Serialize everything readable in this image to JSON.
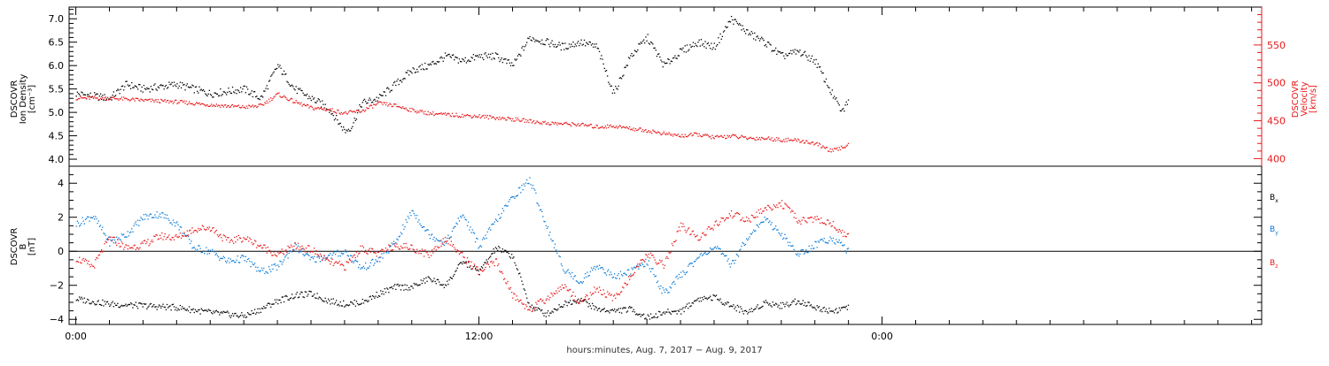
{
  "chart_data": [
    {
      "type": "scatter",
      "panel": "density-velocity",
      "ylabel_left": [
        "DSCOVR",
        "Ion Density",
        "[cm⁻³]"
      ],
      "ylabel_right": [
        "DSCOVR",
        "Velocity",
        "[km/s]"
      ],
      "ylim_left": [
        3.85,
        7.25
      ],
      "ylim_right": [
        390,
        600
      ],
      "yticks_left": [
        4.0,
        4.5,
        5.0,
        5.5,
        6.0,
        6.5,
        7.0
      ],
      "yticks_left_labels": [
        "4.0",
        "4.5",
        "5.0",
        "5.5",
        "6.0",
        "6.5",
        "7.0"
      ],
      "yticks_right": [
        400,
        450,
        500,
        550
      ],
      "yticks_right_labels": [
        "400",
        "450",
        "500",
        "550"
      ],
      "series": [
        {
          "axis": "left",
          "color": "#000000",
          "x": [
            0,
            1,
            1.5,
            2,
            3,
            4,
            5,
            5.5,
            6,
            6.5,
            7,
            7.5,
            8,
            8.2,
            8.5,
            9,
            9.5,
            10,
            10.5,
            11,
            11.5,
            12,
            12.5,
            13,
            13.5,
            14,
            14.5,
            15,
            15.5,
            16,
            16.5,
            17,
            17.5,
            18,
            18.5,
            19,
            19.5,
            20,
            20.5,
            21,
            21.5,
            22,
            22.5,
            22.8,
            23
          ],
          "y": [
            5.4,
            5.3,
            5.6,
            5.5,
            5.6,
            5.4,
            5.5,
            5.3,
            6.0,
            5.5,
            5.3,
            5.1,
            4.6,
            4.7,
            5.2,
            5.3,
            5.6,
            5.9,
            6.0,
            6.2,
            6.1,
            6.2,
            6.2,
            6.0,
            6.6,
            6.5,
            6.4,
            6.5,
            6.4,
            5.4,
            6.2,
            6.6,
            6.0,
            6.3,
            6.5,
            6.4,
            7.0,
            6.7,
            6.5,
            6.2,
            6.3,
            6.1,
            5.4,
            5.0,
            5.3
          ]
        },
        {
          "axis": "right",
          "color": "#e8191b",
          "x": [
            0,
            1,
            2,
            3,
            4,
            5,
            5.5,
            6,
            6.5,
            7,
            7.5,
            8,
            8.5,
            9,
            9.5,
            10,
            10.5,
            11,
            12,
            13,
            14,
            15,
            15.5,
            16,
            16.5,
            17,
            17.5,
            18,
            18.5,
            19,
            19.5,
            20,
            20.5,
            21,
            21.5,
            22,
            22.5,
            23
          ],
          "y": [
            480,
            480,
            477,
            475,
            471,
            468,
            470,
            485,
            475,
            467,
            465,
            460,
            463,
            473,
            470,
            464,
            460,
            458,
            456,
            452,
            447,
            445,
            442,
            443,
            440,
            437,
            433,
            430,
            432,
            428,
            430,
            427,
            427,
            425,
            424,
            420,
            410,
            418
          ]
        }
      ]
    },
    {
      "type": "scatter",
      "panel": "magnetic-field",
      "ylabel": [
        "DSCOVR",
        "B",
        "[nT]"
      ],
      "ylim": [
        -4.3,
        5.0
      ],
      "yticks": [
        -4,
        -2,
        0,
        2,
        4
      ],
      "yticks_labels": [
        "−4",
        "−2",
        "0",
        "2",
        "4"
      ],
      "series": [
        {
          "name": "Bx",
          "label": "B",
          "sub": "x",
          "color": "#000000",
          "x": [
            0,
            1,
            2,
            3,
            4,
            5,
            5.5,
            6,
            6.5,
            7,
            7.5,
            8,
            8.5,
            9,
            9.5,
            10,
            10.5,
            11,
            11.5,
            12,
            12.5,
            13,
            13.5,
            14,
            14.5,
            15,
            15.5,
            16,
            16.5,
            17,
            17.5,
            18,
            18.5,
            19,
            19.5,
            20,
            20.5,
            21,
            21.5,
            22,
            22.5,
            23
          ],
          "y": [
            -2.8,
            -3.1,
            -3.2,
            -3.3,
            -3.6,
            -3.8,
            -3.4,
            -2.9,
            -2.6,
            -2.5,
            -2.9,
            -3.1,
            -3.0,
            -2.5,
            -2.1,
            -2.1,
            -1.6,
            -2.0,
            -0.6,
            -1.2,
            0.2,
            -0.3,
            -3.2,
            -3.7,
            -3.1,
            -2.8,
            -3.4,
            -3.5,
            -3.4,
            -3.9,
            -3.6,
            -3.5,
            -2.8,
            -2.7,
            -3.2,
            -3.6,
            -3.0,
            -3.2,
            -2.9,
            -3.3,
            -3.5,
            -3.3
          ]
        },
        {
          "name": "By",
          "label": "B",
          "sub": "y",
          "color": "#0a7bd8",
          "x": [
            0,
            0.5,
            1,
            1.5,
            2,
            2.5,
            3,
            3.5,
            4,
            4.5,
            5,
            5.5,
            6,
            6.5,
            7,
            7.5,
            8,
            8.5,
            9,
            9.5,
            10,
            10.5,
            11,
            11.5,
            12,
            12.5,
            13,
            13.5,
            14,
            14.5,
            15,
            15.5,
            16,
            16.5,
            17,
            17.5,
            18,
            18.5,
            19,
            19.5,
            20,
            20.5,
            21,
            21.5,
            22,
            22.5,
            23
          ],
          "y": [
            1.6,
            2.1,
            0.5,
            1.0,
            2.0,
            2.2,
            1.6,
            0.2,
            0.0,
            -0.6,
            -0.4,
            -1.2,
            -0.9,
            0.3,
            -0.5,
            -0.3,
            0.0,
            -1.0,
            -0.5,
            0.5,
            2.4,
            1.0,
            0.5,
            2.2,
            0.3,
            1.8,
            3.2,
            4.2,
            1.5,
            -1.0,
            -1.8,
            -0.8,
            -1.5,
            -1.2,
            -0.6,
            -2.5,
            -1.4,
            -0.4,
            0.3,
            -0.8,
            0.9,
            1.9,
            1.0,
            -0.2,
            0.4,
            0.8,
            0.0
          ]
        },
        {
          "name": "Bz",
          "label": "B",
          "sub": "z",
          "color": "#e8191b",
          "x": [
            0,
            0.5,
            1,
            1.5,
            2,
            2.5,
            3,
            3.5,
            4,
            4.5,
            5,
            5.5,
            6,
            6.5,
            7,
            7.5,
            8,
            8.5,
            9,
            9.5,
            10,
            10.5,
            11,
            11.5,
            12,
            12.5,
            13,
            13.5,
            14,
            14.5,
            15,
            15.5,
            16,
            16.5,
            17,
            17.5,
            18,
            18.5,
            19,
            19.5,
            20,
            20.5,
            21,
            21.5,
            22,
            22.5,
            23
          ],
          "y": [
            -0.4,
            -0.9,
            0.8,
            0.2,
            0.4,
            0.9,
            0.8,
            1.3,
            1.4,
            0.6,
            0.8,
            0.3,
            -0.2,
            0.3,
            0.1,
            -0.6,
            -0.9,
            0.2,
            -0.2,
            0.4,
            0.2,
            -0.2,
            0.8,
            -0.3,
            -1.2,
            -0.6,
            -2.6,
            -3.4,
            -2.8,
            -2.0,
            -3.0,
            -2.2,
            -2.8,
            -1.5,
            -0.2,
            -0.8,
            1.5,
            0.8,
            1.5,
            2.2,
            1.8,
            2.5,
            2.8,
            1.8,
            1.9,
            1.6,
            0.8
          ]
        }
      ]
    }
  ],
  "xaxis": {
    "xlim": [
      -0.2,
      35.3
    ],
    "major_ticks": [
      0,
      12,
      24
    ],
    "major_labels": [
      "0:00",
      "12:00",
      "0:00"
    ],
    "xlabel": "hours:minutes, Aug.  7, 2017 − Aug.  9, 2017"
  }
}
